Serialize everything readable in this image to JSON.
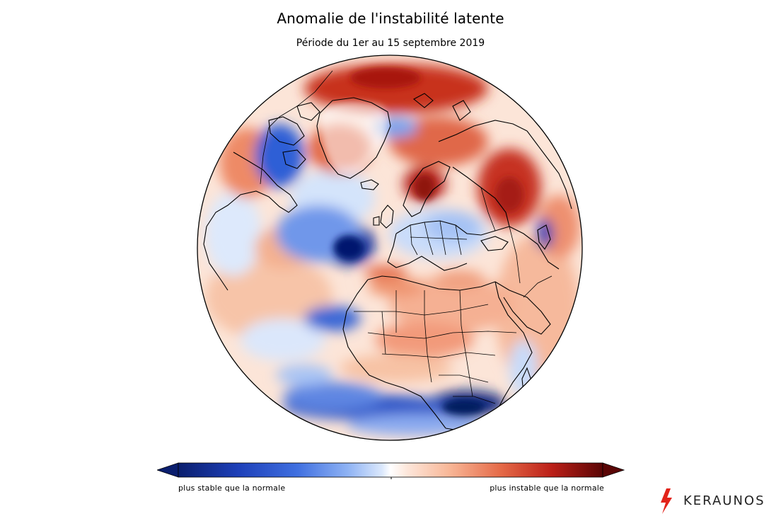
{
  "map": {
    "title": "Anomalie de l'instabilité latente",
    "subtitle": "Période du 1er au 15 septembre 2019",
    "projection": "orthographic",
    "field": "latent instability anomaly"
  },
  "legend": {
    "left_label": "plus stable que la normale",
    "right_label": "plus instable que la normale",
    "extend": "both",
    "colors": [
      "#0a1e6e",
      "#1d3fb8",
      "#5e8ff0",
      "#c6dcfa",
      "#ffffff",
      "#fdd2bb",
      "#f2875f",
      "#c62a1b",
      "#5a0505"
    ]
  },
  "brand": {
    "name": "KERAUNOS",
    "icon": "lightning-bolt-icon",
    "color": "#e2231a"
  }
}
